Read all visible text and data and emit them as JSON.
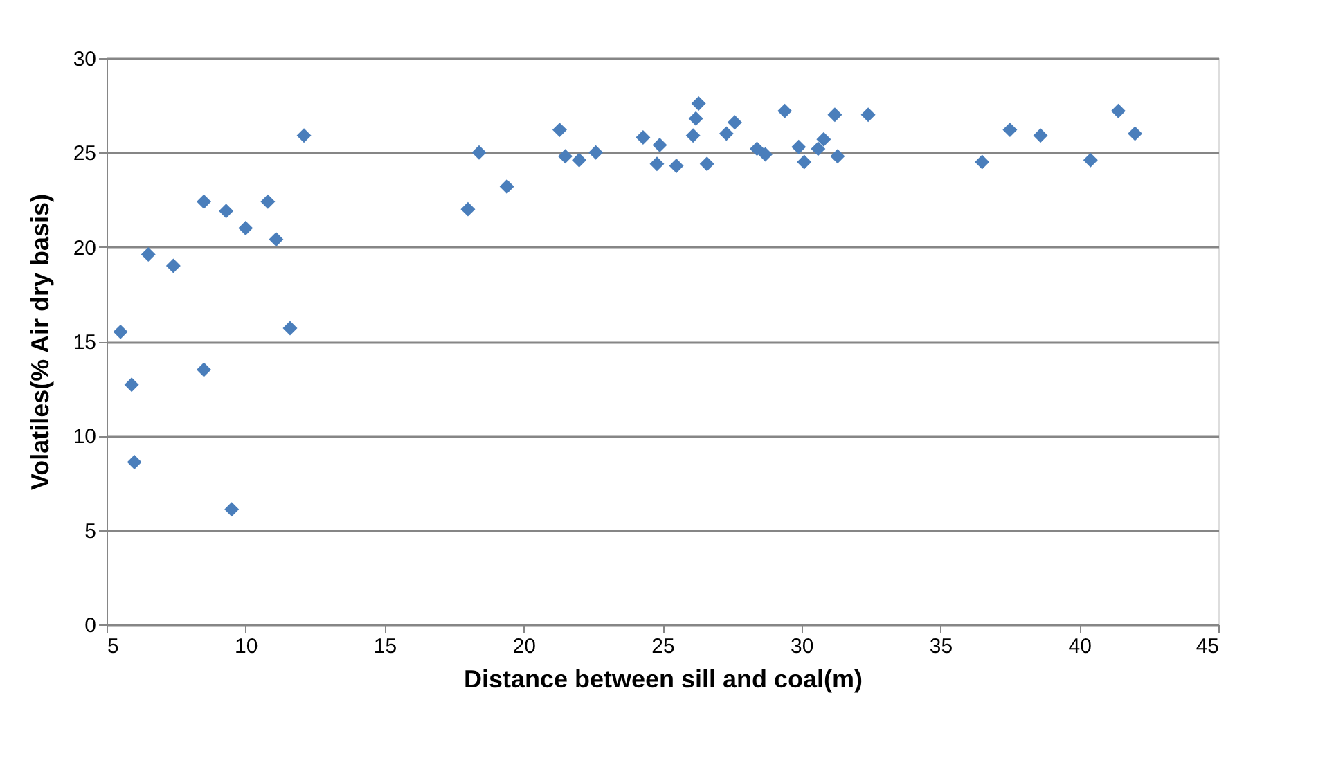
{
  "chart_data": {
    "type": "scatter",
    "xlabel": "Distance between sill and coal(m)",
    "ylabel": "Volatiles(% Air dry basis)",
    "xlim": [
      5,
      45
    ],
    "xticks": [
      5,
      10,
      15,
      20,
      25,
      30,
      35,
      40,
      45
    ],
    "ylim": [
      0,
      30
    ],
    "yticks": [
      0,
      5,
      10,
      15,
      20,
      25,
      30
    ],
    "grid": "y",
    "marker": "diamond",
    "legend": false,
    "series": [
      {
        "color": "#4a7ebb",
        "x": [
          5.5,
          5.9,
          6.0,
          6.5,
          7.4,
          8.5,
          8.5,
          9.3,
          9.5,
          10.0,
          10.8,
          11.1,
          11.6,
          12.1,
          18.0,
          18.4,
          19.4,
          21.3,
          21.5,
          22.0,
          22.6,
          24.3,
          24.9,
          24.8,
          25.5,
          26.1,
          26.3,
          26.2,
          26.6,
          27.3,
          27.6,
          28.4,
          28.7,
          29.4,
          29.9,
          30.1,
          30.6,
          30.8,
          31.3,
          31.2,
          32.4,
          36.5,
          37.5,
          38.6,
          40.4,
          41.4,
          42.0
        ],
        "values": [
          15.5,
          12.7,
          8.6,
          19.6,
          19.0,
          22.4,
          13.5,
          21.9,
          6.1,
          21.0,
          22.4,
          20.4,
          15.7,
          25.9,
          22.0,
          25.0,
          23.2,
          26.2,
          24.8,
          24.6,
          25.0,
          25.8,
          25.4,
          24.4,
          24.3,
          25.9,
          27.6,
          26.8,
          24.4,
          26.0,
          26.6,
          25.2,
          24.9,
          27.2,
          25.3,
          24.5,
          25.2,
          25.7,
          24.8,
          27.0,
          27.0,
          24.5,
          26.2,
          25.9,
          24.6,
          27.2,
          26.0
        ]
      }
    ]
  }
}
